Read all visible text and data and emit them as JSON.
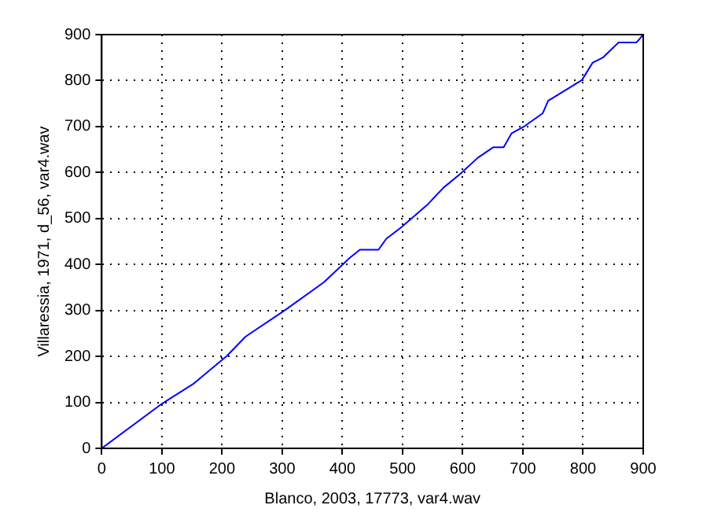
{
  "chart_data": {
    "type": "line",
    "xlabel": "Blanco, 2003, 17773, var4.wav",
    "ylabel": "Villaressia, 1971, d_56, var4.wav",
    "x": [
      0,
      100,
      152,
      208,
      239,
      304,
      369,
      412,
      429,
      460,
      473,
      499,
      542,
      568,
      596,
      625,
      651,
      668,
      681,
      703,
      733,
      742,
      798,
      816,
      833,
      859,
      889,
      900
    ],
    "series": [
      {
        "color": "#0000ff",
        "values": [
          0,
          97,
          140,
          201,
          243,
          300,
          361,
          414,
          432,
          432,
          456,
          482,
          531,
          567,
          597,
          632,
          655,
          655,
          685,
          701,
          729,
          756,
          801,
          839,
          850,
          883,
          883,
          900
        ]
      }
    ],
    "xlim": [
      0,
      900
    ],
    "ylim": [
      0,
      900
    ],
    "xticks": [
      0,
      100,
      200,
      300,
      400,
      500,
      600,
      700,
      800,
      900
    ],
    "yticks": [
      0,
      100,
      200,
      300,
      400,
      500,
      600,
      700,
      800,
      900
    ],
    "grid": true,
    "legend": false,
    "marker": "none",
    "line_style": "solid"
  }
}
